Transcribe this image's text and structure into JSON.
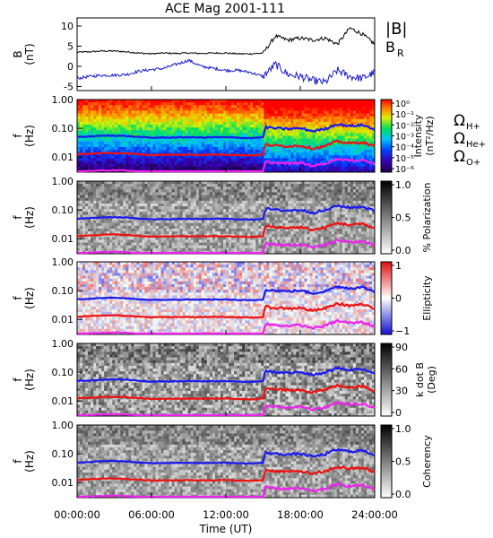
{
  "title": "ACE Mag 2001-111",
  "colors": {
    "bmag": "#000000",
    "br": "#1a1acc",
    "h_plus": "#1a1aee",
    "he_plus": "#ee1111",
    "o_plus": "#ee22ee"
  },
  "chart_data": [
    {
      "type": "line",
      "ylabel": "B",
      "yunit": "(nT)",
      "ylim": [
        -6,
        12
      ],
      "yticks": [
        "10",
        "5",
        "0",
        "-5"
      ],
      "ytick_values": [
        10,
        5,
        0,
        -5
      ],
      "legend": [
        {
          "label": "|B|",
          "color": "#000000"
        },
        {
          "label": "B",
          "sub": "R",
          "color": "#1a1acc"
        }
      ],
      "x_hours": [
        0,
        1,
        2,
        3,
        4,
        5,
        6,
        7,
        8,
        9,
        10,
        11,
        12,
        13,
        14,
        15,
        16,
        17,
        18,
        19,
        20,
        21,
        22,
        23,
        24
      ],
      "series": [
        {
          "name": "|B|",
          "color": "#000000",
          "values": [
            3.5,
            3.6,
            3.8,
            3.8,
            3.6,
            3.3,
            3.1,
            3.3,
            3.2,
            3.3,
            3.2,
            3.3,
            3.3,
            3.1,
            3.1,
            3.3,
            7.5,
            6.5,
            7.0,
            6.5,
            7.0,
            5.5,
            9.5,
            8.0,
            5.5
          ]
        },
        {
          "name": "B",
          "color": "#1a1acc",
          "values": [
            -3.0,
            -2.5,
            -2.2,
            -2.2,
            -2.0,
            -1.2,
            -0.8,
            -0.5,
            0.5,
            1.5,
            0.0,
            -0.5,
            -1.0,
            -1.0,
            -1.5,
            -2.5,
            0.5,
            -2.0,
            -2.5,
            -3.5,
            -4.0,
            -1.0,
            -2.5,
            -3.0,
            -1.5
          ]
        }
      ]
    },
    {
      "type": "heatmap",
      "ylabel": "f",
      "yunit": "(Hz)",
      "scale": "log",
      "ylim": [
        0.003,
        1.0
      ],
      "yticks": [
        "1.00",
        "0.10",
        "0.01"
      ],
      "colorbar": {
        "label": "Intensity",
        "unit": "(nT²/Hz)",
        "ticks": [
          "10⁰",
          "10⁻¹",
          "10⁻²",
          "10⁻³",
          "10⁻⁴",
          "10⁻⁵",
          "10⁻⁶"
        ]
      },
      "legend": [
        {
          "label": "Ω",
          "sub": "H+",
          "color": "#1a1aee"
        },
        {
          "label": "Ω",
          "sub": "He+",
          "color": "#ee1111"
        },
        {
          "label": "Ω",
          "sub": "O+",
          "color": "#ee22ee"
        }
      ]
    },
    {
      "type": "heatmap",
      "ylabel": "f",
      "yunit": "(Hz)",
      "scale": "log",
      "ylim": [
        0.003,
        1.0
      ],
      "yticks": [
        "1.00",
        "0.10",
        "0.01"
      ],
      "colorbar": {
        "label": "% Polarization",
        "ticks": [
          "1.0",
          "0.5",
          "0.0"
        ]
      }
    },
    {
      "type": "heatmap",
      "ylabel": "f",
      "yunit": "(Hz)",
      "scale": "log",
      "ylim": [
        0.003,
        1.0
      ],
      "yticks": [
        "1.00",
        "0.10",
        "0.01"
      ],
      "colorbar": {
        "label": "Ellipticity",
        "ticks": [
          "1",
          "0",
          "−1"
        ]
      }
    },
    {
      "type": "heatmap",
      "ylabel": "f",
      "yunit": "(Hz)",
      "scale": "log",
      "ylim": [
        0.003,
        1.0
      ],
      "yticks": [
        "1.00",
        "0.10",
        "0.01"
      ],
      "colorbar": {
        "label": "k dot B",
        "unit": "(Deg)",
        "ticks": [
          "90",
          "60",
          "30",
          "0"
        ]
      }
    },
    {
      "type": "heatmap",
      "ylabel": "f",
      "yunit": "(Hz)",
      "scale": "log",
      "ylim": [
        0.003,
        1.0
      ],
      "yticks": [
        "1.00",
        "0.10",
        "0.01"
      ],
      "colorbar": {
        "label": "Coherency",
        "ticks": [
          "1.0",
          "0.5",
          "0.0"
        ]
      }
    }
  ],
  "gyrofrequency": {
    "x_hours": [
      0,
      1,
      2,
      3,
      4,
      5,
      6,
      7,
      8,
      9,
      10,
      11,
      12,
      13,
      14,
      15,
      15.2,
      16,
      17,
      18,
      19,
      20,
      21,
      22,
      23,
      24
    ],
    "h_plus_hz": [
      0.05,
      0.052,
      0.055,
      0.056,
      0.054,
      0.05,
      0.047,
      0.048,
      0.048,
      0.049,
      0.048,
      0.049,
      0.049,
      0.047,
      0.046,
      0.049,
      0.11,
      0.1,
      0.095,
      0.1,
      0.08,
      0.095,
      0.14,
      0.12,
      0.13,
      0.09
    ],
    "he_plus_hz": [
      0.0125,
      0.013,
      0.0138,
      0.014,
      0.0135,
      0.0125,
      0.0118,
      0.012,
      0.012,
      0.0122,
      0.012,
      0.0122,
      0.0122,
      0.0118,
      0.0115,
      0.0122,
      0.0275,
      0.025,
      0.024,
      0.025,
      0.02,
      0.024,
      0.035,
      0.03,
      0.033,
      0.0225
    ],
    "o_plus_hz": [
      0.0031,
      0.0033,
      0.0034,
      0.0035,
      0.0034,
      0.0031,
      0.0029,
      0.003,
      0.003,
      0.0031,
      0.003,
      0.0031,
      0.0031,
      0.0029,
      0.0029,
      0.0031,
      0.0069,
      0.0063,
      0.006,
      0.0063,
      0.005,
      0.006,
      0.0088,
      0.0075,
      0.0081,
      0.0056
    ]
  },
  "x_axis": {
    "label": "Time (UT)",
    "ticks": [
      "00:00:00",
      "06:00:00",
      "12:00:00",
      "18:00:00",
      "24:00:00"
    ],
    "tick_hours": [
      0,
      6,
      12,
      18,
      24
    ]
  }
}
